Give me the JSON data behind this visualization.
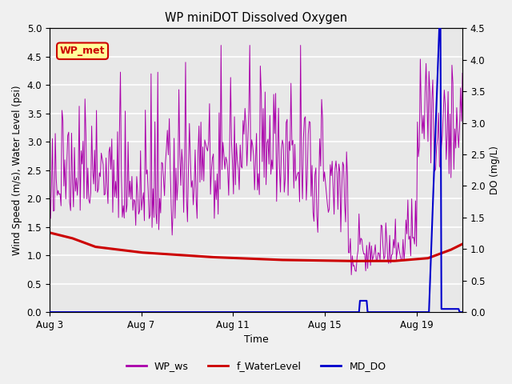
{
  "title": "WP miniDOT Dissolved Oxygen",
  "xlabel": "Time",
  "ylabel_left": "Wind Speed (m/s), Water Level (psi)",
  "ylabel_right": "DO (mg/L)",
  "ylim_left": [
    0.0,
    5.0
  ],
  "ylim_right": [
    0.0,
    4.5
  ],
  "yticks_left": [
    0.0,
    0.5,
    1.0,
    1.5,
    2.0,
    2.5,
    3.0,
    3.5,
    4.0,
    4.5,
    5.0
  ],
  "yticks_right": [
    0.0,
    0.5,
    1.0,
    1.5,
    2.0,
    2.5,
    3.0,
    3.5,
    4.0,
    4.5
  ],
  "xtick_labels": [
    "Aug 3",
    "Aug 7",
    "Aug 11",
    "Aug 15",
    "Aug 19"
  ],
  "xtick_positions": [
    0,
    4,
    8,
    12,
    16
  ],
  "xlim": [
    0,
    18
  ],
  "annotation_text": "WP_met",
  "annotation_box_color": "#ffff99",
  "annotation_text_color": "#cc0000",
  "annotation_box_edgecolor": "#cc0000",
  "fig_bg_color": "#f0f0f0",
  "axes_bg_color": "#e8e8e8",
  "grid_color": "#ffffff",
  "wp_ws_color": "#aa00aa",
  "f_waterlevel_color": "#cc0000",
  "md_do_color": "#0000cc",
  "legend_labels": [
    "WP_ws",
    "f_WaterLevel",
    "MD_DO"
  ]
}
